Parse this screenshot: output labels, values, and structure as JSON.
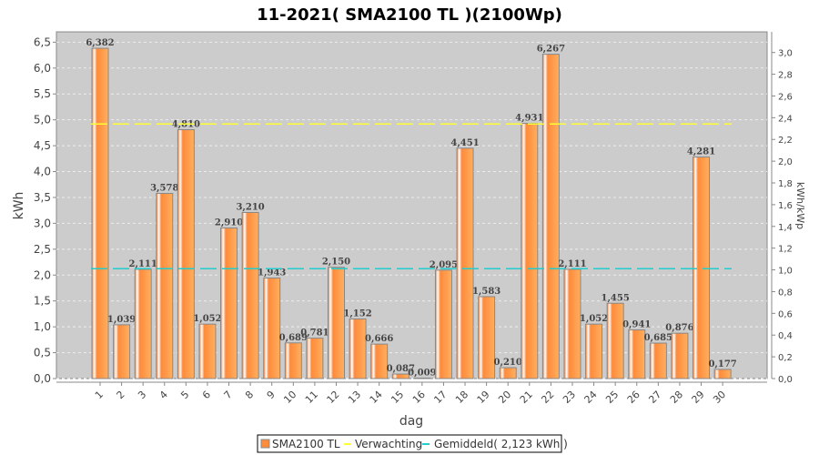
{
  "chart_data": {
    "type": "bar",
    "title": "11-2021( SMA2100 TL )(2100Wp)",
    "xlabel": "dag",
    "ylabel": "kWh",
    "y2label": "kWh/kWp",
    "ylim": [
      0,
      6.7
    ],
    "y2lim": [
      0,
      3.19
    ],
    "yticks": [
      "0,0",
      "0,5",
      "1,0",
      "1,5",
      "2,0",
      "2,5",
      "3,0",
      "3,5",
      "4,0",
      "4,5",
      "5,0",
      "5,5",
      "6,0",
      "6,5"
    ],
    "y2ticks": [
      "0,0",
      "0,2",
      "0,4",
      "0,6",
      "0,8",
      "1,0",
      "1,2",
      "1,4",
      "1,6",
      "1,8",
      "2,0",
      "2,2",
      "2,4",
      "2,6",
      "2,8",
      "3,0"
    ],
    "grid": true,
    "categories": [
      "1",
      "2",
      "3",
      "4",
      "5",
      "6",
      "7",
      "8",
      "9",
      "10",
      "11",
      "12",
      "13",
      "14",
      "15",
      "16",
      "17",
      "18",
      "19",
      "20",
      "21",
      "22",
      "23",
      "24",
      "25",
      "26",
      "27",
      "28",
      "29",
      "30"
    ],
    "series": [
      {
        "name": "SMA2100 TL",
        "color": "#ff8c3c",
        "values": [
          6.382,
          1.039,
          2.111,
          3.578,
          4.81,
          1.052,
          2.91,
          3.21,
          1.943,
          0.689,
          0.781,
          2.15,
          1.152,
          0.666,
          0.087,
          0.009,
          2.095,
          4.451,
          1.583,
          0.21,
          4.931,
          6.267,
          2.111,
          1.052,
          1.455,
          0.941,
          0.685,
          0.876,
          4.281,
          0.177
        ]
      }
    ],
    "data_labels": [
      "6,382",
      "1,039",
      "2,111",
      "3,578",
      "4,810",
      "1,052",
      "2,910",
      "3,210",
      "1,943",
      "0,689",
      "0,781",
      "2,150",
      "1,152",
      "0,666",
      "0,087",
      "0,009",
      "2,095",
      "4,451",
      "1,583",
      "0,210",
      "4,931",
      "6,267",
      "2,111",
      "1,052",
      "1,455",
      "0,941",
      "0,685",
      "0,876",
      "4,281",
      "0,177"
    ],
    "lines": [
      {
        "name": "Verwachting",
        "value": 4.92,
        "color": "#ffff33"
      },
      {
        "name": "Gemiddeld( 2,123 kWh )",
        "value": 2.123,
        "color": "#22cccc"
      }
    ],
    "legend": "bottom"
  }
}
